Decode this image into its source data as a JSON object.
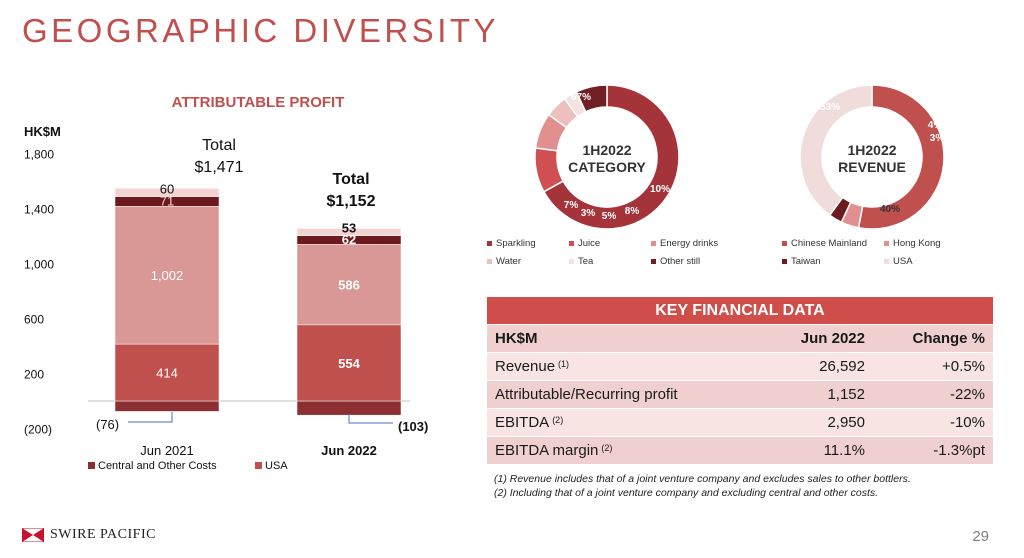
{
  "title": "GEOGRAPHIC DIVERSITY",
  "colors": {
    "central": "#8b2f33",
    "usa": "#c0504d",
    "chinese_mainland": "#d99795",
    "hong_kong": "#6b1a1d",
    "taiwan": "#f2d4d2",
    "accent": "#d04e4a",
    "sparkling": "#a5343a",
    "juice": "#cf4f52",
    "energy": "#e0908e",
    "water": "#ecc0bd",
    "tea": "#f5e2e0",
    "other_still": "#701f24",
    "rev_usa": "#f0dcdb"
  },
  "chart_data": [
    {
      "type": "bar",
      "stacked": true,
      "title": "ATTRIBUTABLE PROFIT",
      "ylabel": "HK$M",
      "ylim": [
        -200,
        1800
      ],
      "yticks": [
        "1,800",
        "1,400",
        "1,000",
        "600",
        "200",
        "(200)"
      ],
      "categories": [
        "Jun 2021",
        "Jun 2022"
      ],
      "totals": [
        "Total\n$1,471",
        "Total\n$1,152"
      ],
      "series": [
        {
          "name": "Central and Other Costs",
          "values": [
            -76,
            -103
          ],
          "labels": [
            "(76)",
            "(103)"
          ]
        },
        {
          "name": "USA",
          "values": [
            414,
            554
          ],
          "labels": [
            "414",
            "554"
          ]
        },
        {
          "name": "Chinese Mainland",
          "values": [
            1002,
            586
          ],
          "labels": [
            "1,002",
            "586"
          ]
        },
        {
          "name": "Hong Kong",
          "values": [
            71,
            62
          ],
          "labels": [
            "71",
            "62"
          ]
        },
        {
          "name": "Taiwan",
          "values": [
            60,
            53
          ],
          "labels": [
            "60",
            "53"
          ]
        }
      ],
      "legend": [
        "Central and Other Costs",
        "USA",
        "Chinese Mainland",
        "Hong Kong",
        "Taiwan"
      ]
    },
    {
      "type": "pie",
      "donut": true,
      "center_label": "1H2022\nCATEGORY",
      "slices": [
        {
          "name": "Sparkling",
          "value": 67,
          "label": "67%"
        },
        {
          "name": "Juice",
          "value": 10,
          "label": "10%"
        },
        {
          "name": "Energy drinks",
          "value": 8,
          "label": "8%"
        },
        {
          "name": "Water",
          "value": 5,
          "label": "5%"
        },
        {
          "name": "Tea",
          "value": 3,
          "label": "3%"
        },
        {
          "name": "Other still",
          "value": 7,
          "label": "7%"
        }
      ],
      "legend": [
        "Sparkling",
        "Juice",
        "Energy drinks",
        "Water",
        "Tea",
        "Other still"
      ]
    },
    {
      "type": "pie",
      "donut": true,
      "center_label": "1H2022\nREVENUE",
      "slices": [
        {
          "name": "Chinese Mainland",
          "value": 53,
          "label": "53%"
        },
        {
          "name": "Hong Kong",
          "value": 4,
          "label": "4%"
        },
        {
          "name": "Taiwan",
          "value": 3,
          "label": "3%"
        },
        {
          "name": "USA",
          "value": 40,
          "label": "40%"
        }
      ],
      "legend": [
        "Chinese Mainland",
        "Hong Kong",
        "Taiwan",
        "USA"
      ]
    }
  ],
  "table": {
    "title": "KEY FINANCIAL DATA",
    "headers": [
      "HK$M",
      "Jun 2022",
      "Change %"
    ],
    "rows": [
      {
        "label": "Revenue",
        "note": "(1)",
        "value": "26,592",
        "change": "+0.5%"
      },
      {
        "label": "Attributable/Recurring profit",
        "note": "",
        "value": "1,152",
        "change": "-22%"
      },
      {
        "label": "EBITDA",
        "note": "(2)",
        "value": "2,950",
        "change": "-10%"
      },
      {
        "label": "EBITDA margin",
        "note": "(2)",
        "value": "11.1%",
        "change": "-1.3%pt"
      }
    ]
  },
  "footnotes": [
    "(1) Revenue includes that of a joint venture company and excludes sales to other bottlers.",
    "(2) Including that of a joint venture company and excluding central and other costs."
  ],
  "logo_text": "SWIRE PACIFIC",
  "page_number": "29"
}
